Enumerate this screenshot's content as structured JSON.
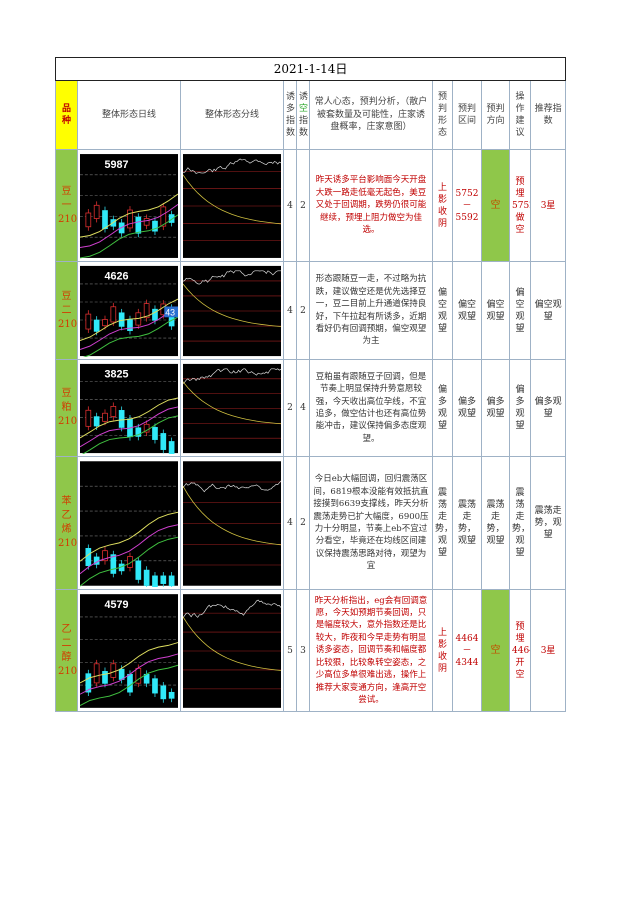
{
  "title": "2021-1-14日",
  "headers": {
    "variety": "品种",
    "daily": "整体形态日线",
    "minute": "整体形态分线",
    "lure_long": "诱多指数",
    "lure_short_prefix": "诱",
    "lure_short_mid": "空",
    "lure_short_suffix": "指数",
    "analysis": "常人心态，预判分析，（散户被套数量及可能性，庄家诱盘概率，庄家意图）",
    "pattern": "预判形态",
    "range": "预判区间",
    "direction": "预判方向",
    "advice": "操作建议",
    "rating": "推荐指数"
  },
  "colors": {
    "green": "#8fc74a",
    "yellow": "#ffff00",
    "red": "#c00000"
  },
  "rows": [
    {
      "variety": "豆一2105",
      "chart_label": "5987",
      "lure_long": "4",
      "lure_short": "2",
      "analysis": "昨天诱多平台影响面今天开盘大跌一路走低毫无起色，美豆又处于回调期，跌势仍很可能继续，预埋上阻力做空为佳选。",
      "pattern": "上影收阴",
      "range": "5752－5592",
      "direction": "空",
      "advice": "预埋5752做空",
      "rating": "3星",
      "highlight": true
    },
    {
      "variety": "豆二2102",
      "chart_label": "4626",
      "chart_tag": "43",
      "lure_long": "4",
      "lure_short": "2",
      "analysis": "形态跟随豆一走，不过略为抗跌，建议做空还是优先选择豆一，豆二目前上升通道保持良好，下午拉起有所诱多，近期看好仍有回调预期，偏空观望为主",
      "pattern": "偏空观望",
      "range": "偏空观望",
      "direction": "偏空观望",
      "advice": "偏空观望",
      "rating": "偏空观望",
      "highlight": false
    },
    {
      "variety": "豆粕2105",
      "chart_label": "3825",
      "lure_long": "2",
      "lure_short": "4",
      "analysis": "豆粕虽有跟随豆子回调，但是节奏上明显保持升势意愿较强，今天收出高位孕线，不宜追多，做空估计也还有高位势能冲击，建议保持偏多态度观望。",
      "pattern": "偏多观望",
      "range": "偏多观望",
      "direction": "偏多观望",
      "advice": "偏多观望",
      "rating": "偏多观望",
      "highlight": false
    },
    {
      "variety": "苯乙烯2102",
      "chart_label": "",
      "lure_long": "4",
      "lure_short": "2",
      "analysis": "今日eb大幅回调，回归震荡区间，6819根本没能有效抵抗直接摸到6639支撑线，昨天分析震荡走势已扩大幅度，6900压力十分明显，节奏上eb不宜过分看空，毕竟还在均线区间建议保持震荡思路对待，观望为宜",
      "pattern": "震荡走势，观望",
      "range": "震荡走势，观望",
      "direction": "震荡走势，观望",
      "advice": "震荡走势，观望",
      "rating": "震荡走势，观望",
      "highlight": false
    },
    {
      "variety": "乙二醇2105",
      "chart_label": "4579",
      "lure_long": "5",
      "lure_short": "3",
      "analysis": "昨天分析指出，eg会有回调意愿，今天如预期节奏回调，只是幅度较大，意外指数还是比较大，昨夜和今早走势有明显诱多姿态，回调节奏和幅度都比较狠，比较象转空姿态，之少高位多单很难出逃，操作上推荐大家变通方向，逢高开空尝试。",
      "pattern": "上影收阴",
      "range": "4464－4344",
      "direction": "空",
      "advice": "预埋4464开空",
      "rating": "3星",
      "highlight": true
    }
  ]
}
